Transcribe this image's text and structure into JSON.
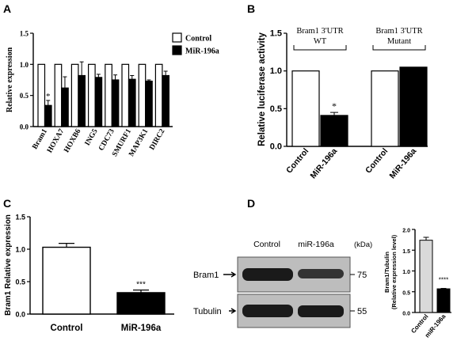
{
  "panels": {
    "A": "A",
    "B": "B",
    "C": "C",
    "D": "D"
  },
  "chart_data": [
    {
      "id": "A",
      "type": "bar",
      "ylabel": "Relative expression",
      "ylim": [
        0,
        1.5
      ],
      "yticks": [
        "0.0",
        "0.5",
        "1.0",
        "1.5"
      ],
      "categories": [
        "Bram1",
        "HOXA7",
        "HOXB6",
        "ING5",
        "CDC73",
        "SMURF1",
        "MAP3K1",
        "DIRC2"
      ],
      "legend": {
        "placement": "right",
        "entries": [
          "Control",
          "MiR-196a"
        ]
      },
      "series": [
        {
          "name": "Control",
          "values": [
            1.0,
            1.0,
            1.0,
            1.0,
            1.0,
            1.0,
            1.0,
            1.0
          ],
          "errors": [
            0,
            0,
            0,
            0,
            0,
            0,
            0,
            0
          ]
        },
        {
          "name": "MiR-196a",
          "values": [
            0.34,
            0.62,
            0.82,
            0.79,
            0.75,
            0.76,
            0.73,
            0.82
          ],
          "errors": [
            0.08,
            0.18,
            0.22,
            0.05,
            0.08,
            0.06,
            0.02,
            0.07
          ]
        }
      ],
      "significance": [
        "*",
        "",
        "",
        "",
        "",
        "",
        "",
        ""
      ]
    },
    {
      "id": "B",
      "type": "bar",
      "ylabel": "Relative luciferase activity",
      "ylim": [
        0,
        1.5
      ],
      "yticks": [
        "0.0",
        "0.5",
        "1.0",
        "1.5"
      ],
      "categories": [
        "Control",
        "MiR-196a",
        "Control",
        "MiR-196a"
      ],
      "values": [
        1.0,
        0.41,
        1.0,
        1.05
      ],
      "errors": [
        0,
        0.04,
        0,
        0
      ],
      "fills": [
        "#ffffff",
        "#000000",
        "#ffffff",
        "#000000"
      ],
      "significance": [
        "",
        "*",
        "",
        ""
      ],
      "groups": [
        {
          "line1": "Bram1 3'UTR",
          "line2": "WT"
        },
        {
          "line1": "Bram1 3'UTR",
          "line2": "Mutant"
        }
      ]
    },
    {
      "id": "C",
      "type": "bar",
      "ylabel": "Bram1 Relative expression",
      "ylim": [
        0,
        1.5
      ],
      "yticks": [
        "0.0",
        "0.5",
        "1.0",
        "1.5"
      ],
      "categories": [
        "Control",
        "MiR-196a"
      ],
      "values": [
        1.03,
        0.33
      ],
      "errors": [
        0.06,
        0.04
      ],
      "fills": [
        "#ffffff",
        "#000000"
      ],
      "significance": [
        "",
        "***"
      ]
    },
    {
      "id": "D",
      "type": "bar",
      "ylabel_line1": "Bram1/Tubulin",
      "ylabel_line2": "(Relative expression level)",
      "ylim": [
        0,
        2.0
      ],
      "yticks": [
        "0.0",
        "0.5",
        "1.0",
        "1.5",
        "2.0"
      ],
      "categories": [
        "Control",
        "miR-196a"
      ],
      "values": [
        1.74,
        0.57
      ],
      "errors": [
        0.07,
        0.01
      ],
      "fills": [
        "#d9d9d9",
        "#000000"
      ],
      "significance": [
        "",
        "****"
      ]
    }
  ],
  "blot": {
    "lane_labels": [
      "Control",
      "miR-196a"
    ],
    "unit": "(kDa)",
    "rows": [
      {
        "name": "Bram1",
        "marker": "75"
      },
      {
        "name": "Tubulin",
        "marker": "55"
      }
    ]
  }
}
